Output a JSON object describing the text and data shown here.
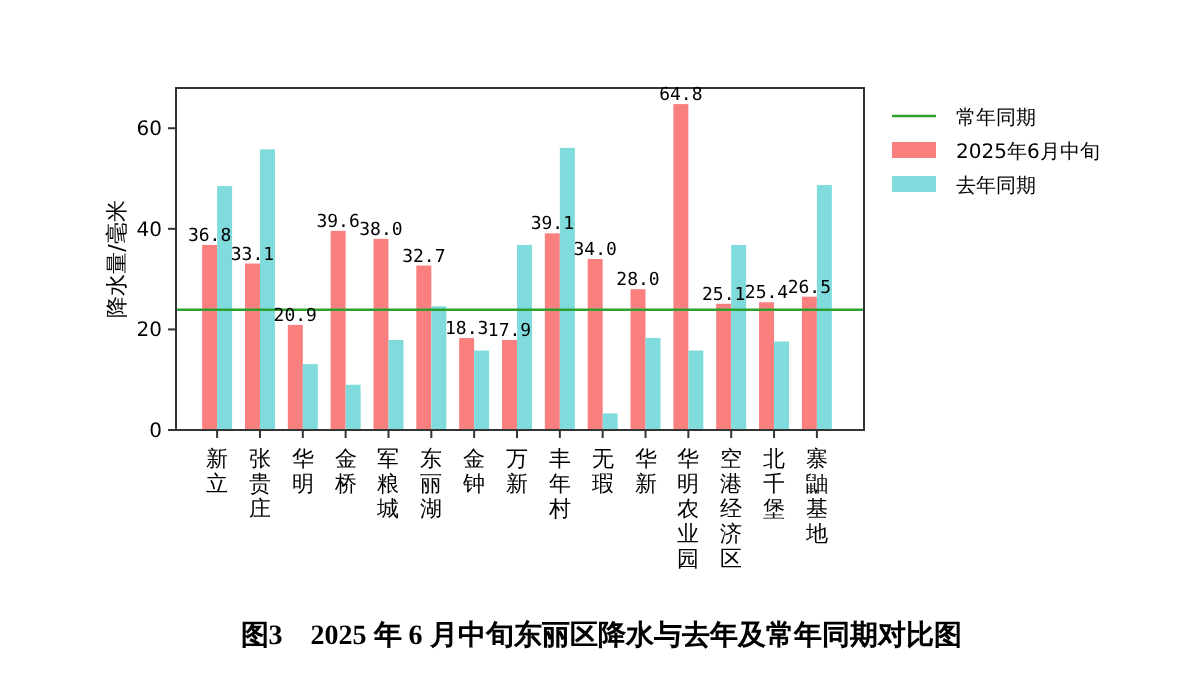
{
  "chart_data": {
    "type": "bar",
    "title": "图3　2025 年 6 月中旬东丽区降水与去年及常年同期对比图",
    "ylabel": "降水量/毫米",
    "categories": [
      "新立",
      "张贵庄",
      "华明",
      "金桥",
      "军粮城",
      "东丽湖",
      "金钟",
      "万新",
      "丰年村",
      "无瑕",
      "华新",
      "华明农业园",
      "空港经济区",
      "北千堡",
      "寨鼬基地"
    ],
    "series": [
      {
        "name": "2025年6月中旬",
        "color": "#fa8080",
        "values": [
          36.8,
          33.1,
          20.9,
          39.6,
          38.0,
          32.7,
          18.3,
          17.9,
          39.1,
          34.0,
          28.0,
          64.8,
          25.1,
          25.4,
          26.5
        ],
        "value_labels": [
          "36.8",
          "33.1",
          "20.9",
          "39.6",
          "38.0",
          "32.7",
          "18.3",
          "17.9",
          "39.1",
          "34.0",
          "28.0",
          "64.8",
          "25.1",
          "25.4",
          "26.5"
        ]
      },
      {
        "name": "去年同期",
        "color": "#80dcdc",
        "values": [
          48.5,
          55.8,
          13.1,
          9.0,
          17.9,
          24.6,
          15.8,
          36.8,
          56.1,
          3.3,
          18.3,
          15.8,
          36.8,
          17.6,
          48.7
        ]
      }
    ],
    "ref_lines": [
      {
        "axis": "y",
        "value": 23.9,
        "label": "常年同期",
        "color": "#2ca02c"
      }
    ],
    "ylim": [
      0,
      68
    ],
    "yticks": [
      0,
      20,
      40,
      60
    ],
    "legend": "top right",
    "grid": false
  }
}
